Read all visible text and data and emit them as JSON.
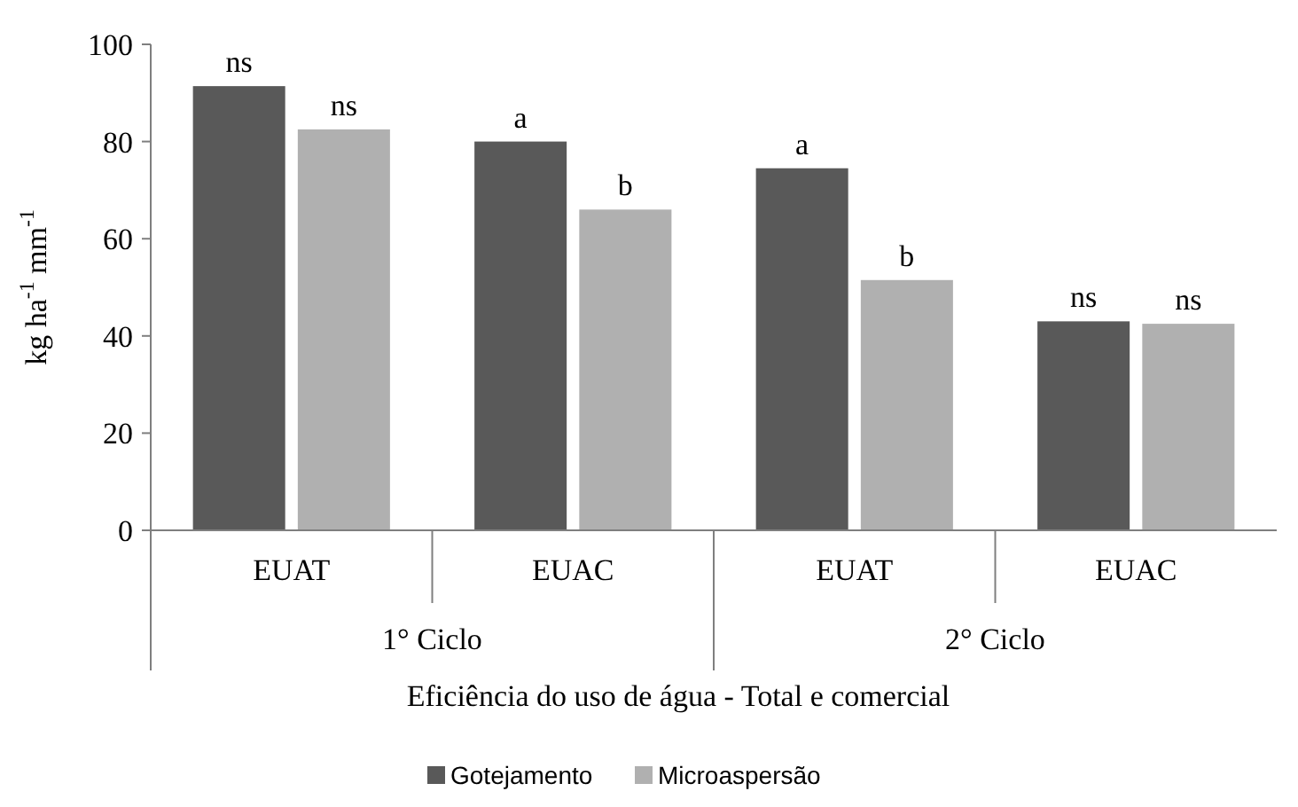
{
  "chart_data": {
    "type": "bar",
    "categories": [
      "EUAT",
      "EUAC",
      "EUAT",
      "EUAC"
    ],
    "xlabel": "Eficiência do uso de água - Total e comercial",
    "ylabel": "kg ha$^{-1}$ mm$^{-1}$",
    "ylim": [
      0,
      100
    ],
    "yticks": [
      0,
      20,
      40,
      60,
      80,
      100
    ],
    "grid": false,
    "legend": "bottom",
    "annotations": [
      "1° Ciclo",
      "2° Ciclo"
    ],
    "series": [
      {
        "name": "Gotejamento",
        "color": "#595959",
        "values": [
          91.4,
          80,
          74.5,
          43
        ],
        "value_labels": [
          "ns",
          "a",
          "a",
          "ns"
        ]
      },
      {
        "name": "Microaspersão",
        "color": "#b0b0b0",
        "values": [
          82.5,
          66,
          51.5,
          42.5
        ],
        "value_labels": [
          "ns",
          "b",
          "b",
          "ns"
        ]
      }
    ]
  }
}
